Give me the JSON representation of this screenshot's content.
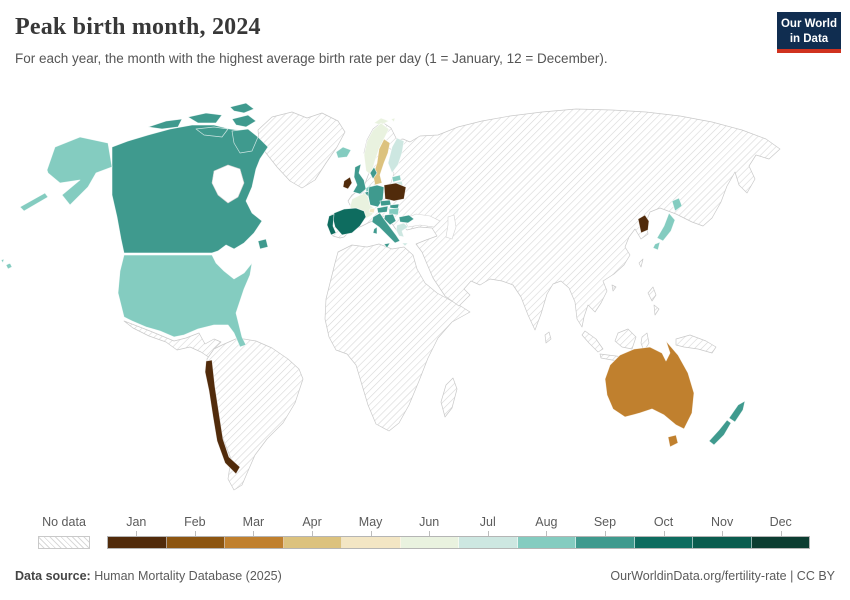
{
  "header": {
    "title": "Peak birth month, 2024",
    "subtitle": "For each year, the month with the highest average birth rate per day (1 = January, 12 = December)."
  },
  "logo": {
    "line1": "Our World",
    "line2": "in Data",
    "bg_color": "#102d50",
    "accent_color": "#d0321f"
  },
  "legend": {
    "no_data_label": "No data",
    "months": [
      {
        "label": "Jan",
        "color": "#512b0b"
      },
      {
        "label": "Feb",
        "color": "#8c5511"
      },
      {
        "label": "Mar",
        "color": "#c0802e"
      },
      {
        "label": "Apr",
        "color": "#dcc27e"
      },
      {
        "label": "May",
        "color": "#f3e6c4"
      },
      {
        "label": "Jun",
        "color": "#e9f2df"
      },
      {
        "label": "Jul",
        "color": "#cde7e1"
      },
      {
        "label": "Aug",
        "color": "#84ccc0"
      },
      {
        "label": "Sep",
        "color": "#3f9a8e"
      },
      {
        "label": "Oct",
        "color": "#0e6c5f"
      },
      {
        "label": "Nov",
        "color": "#0a5c4e"
      },
      {
        "label": "Dec",
        "color": "#0c3d31"
      }
    ]
  },
  "footer": {
    "source_label": "Data source:",
    "source_value": " Human Mortality Database (2025)",
    "right_text": "OurWorldinData.org/fertility-rate | CC BY"
  },
  "chart_data": {
    "type": "choropleth",
    "title": "Peak birth month, 2024",
    "subtitle": "For each year, the month with the highest average birth rate per day (1 = January, 12 = December).",
    "unit": "month (1 = January, 12 = December)",
    "legend_categories": [
      "Jan",
      "Feb",
      "Mar",
      "Apr",
      "May",
      "Jun",
      "Jul",
      "Aug",
      "Sep",
      "Oct",
      "Nov",
      "Dec"
    ],
    "legend_position": "bottom",
    "no_data_style": "light gray diagonal hatching",
    "palette": {
      "Jan": "#512b0b",
      "Feb": "#8c5511",
      "Mar": "#c0802e",
      "Apr": "#dcc27e",
      "May": "#f3e6c4",
      "Jun": "#e9f2df",
      "Jul": "#cde7e1",
      "Aug": "#84ccc0",
      "Sep": "#3f9a8e",
      "Oct": "#0e6c5f",
      "Nov": "#0a5c4e",
      "Dec": "#0c3d31"
    },
    "countries": [
      {
        "name": "Canada",
        "month": "Sep"
      },
      {
        "name": "United States",
        "month": "Aug"
      },
      {
        "name": "Chile",
        "month": "Jan"
      },
      {
        "name": "Iceland",
        "month": "Aug"
      },
      {
        "name": "Ireland",
        "month": "Jan"
      },
      {
        "name": "United Kingdom",
        "month": "Sep"
      },
      {
        "name": "Norway",
        "month": "Jun"
      },
      {
        "name": "Sweden",
        "month": "Apr"
      },
      {
        "name": "Finland",
        "month": "Jul"
      },
      {
        "name": "Denmark",
        "month": "Sep"
      },
      {
        "name": "Estonia",
        "month": "Aug"
      },
      {
        "name": "Latvia",
        "month": "Jul"
      },
      {
        "name": "Lithuania",
        "month": "Aug"
      },
      {
        "name": "Poland",
        "month": "Jan"
      },
      {
        "name": "Germany",
        "month": "Sep"
      },
      {
        "name": "Netherlands",
        "month": "Aug"
      },
      {
        "name": "Belgium",
        "month": "Sep"
      },
      {
        "name": "France",
        "month": "Jun"
      },
      {
        "name": "Switzerland",
        "month": "May"
      },
      {
        "name": "Austria",
        "month": "Sep"
      },
      {
        "name": "Czechia",
        "month": "Sep"
      },
      {
        "name": "Slovakia",
        "month": "Sep"
      },
      {
        "name": "Hungary",
        "month": "Aug"
      },
      {
        "name": "Croatia",
        "month": "Sep"
      },
      {
        "name": "Italy",
        "month": "Sep"
      },
      {
        "name": "Spain",
        "month": "Oct"
      },
      {
        "name": "Portugal",
        "month": "Oct"
      },
      {
        "name": "Bulgaria",
        "month": "Sep"
      },
      {
        "name": "Greece",
        "month": "Jul"
      },
      {
        "name": "South Korea",
        "month": "Jan"
      },
      {
        "name": "Japan",
        "month": "Aug"
      },
      {
        "name": "Australia",
        "month": "Mar"
      },
      {
        "name": "New Zealand",
        "month": "Sep"
      },
      {
        "name": "Svalbard",
        "month": "Jun"
      }
    ],
    "no_data_regions": "All other countries shown with gray diagonal hatching"
  }
}
